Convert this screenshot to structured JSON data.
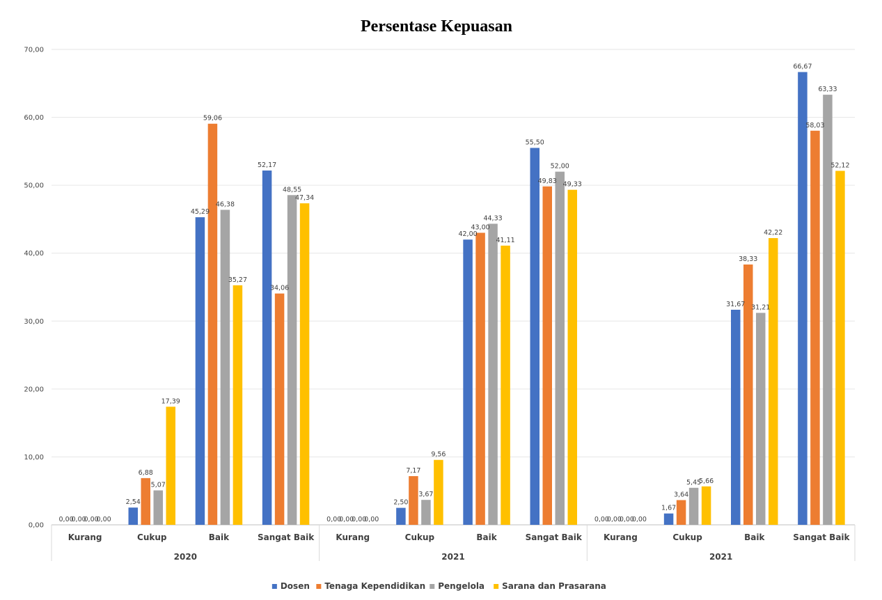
{
  "chart_data": {
    "type": "bar",
    "title": "Persentase Kepuasan",
    "xlabel": "",
    "ylabel": "",
    "ylim": [
      0,
      70
    ],
    "yticks": [
      "0,00",
      "10,00",
      "20,00",
      "30,00",
      "40,00",
      "50,00",
      "60,00",
      "70,00"
    ],
    "grid": true,
    "legend_position": "bottom",
    "groups": [
      {
        "label": "2020",
        "categories": [
          "Kurang",
          "Cukup",
          "Baik",
          "Sangat Baik"
        ]
      },
      {
        "label": "2021",
        "categories": [
          "Kurang",
          "Cukup",
          "Baik",
          "Sangat Baik"
        ]
      },
      {
        "label": "2021",
        "categories": [
          "Kurang",
          "Cukup",
          "Baik",
          "Sangat Baik"
        ]
      }
    ],
    "series": [
      {
        "name": "Dosen",
        "color": "#4472C4",
        "values": [
          0.0,
          2.54,
          45.29,
          52.17,
          0.0,
          2.5,
          42.0,
          55.5,
          0.0,
          1.67,
          31.67,
          66.67
        ],
        "labels": [
          "0,00",
          "2,54",
          "45,29",
          "52,17",
          "0,00",
          "2,50",
          "42,00",
          "55,50",
          "0,00",
          "1,67",
          "31,67",
          "66,67"
        ]
      },
      {
        "name": "Tenaga Kependidikan",
        "color": "#ED7D31",
        "values": [
          0.0,
          6.88,
          59.06,
          34.06,
          0.0,
          7.17,
          43.0,
          49.83,
          0.0,
          3.64,
          38.33,
          58.03
        ],
        "labels": [
          "0,00",
          "6,88",
          "59,06",
          "34,06",
          "0,00",
          "7,17",
          "43,00",
          "49,83",
          "0,00",
          "3,64",
          "38,33",
          "58,03"
        ]
      },
      {
        "name": "Pengelola",
        "color": "#A5A5A5",
        "values": [
          0.0,
          5.07,
          46.38,
          48.55,
          0.0,
          3.67,
          44.33,
          52.0,
          0.0,
          5.45,
          31.21,
          63.33
        ],
        "labels": [
          "0,00",
          "5,07",
          "46,38",
          "48,55",
          "0,00",
          "3,67",
          "44,33",
          "52,00",
          "0,00",
          "5,45",
          "31,21",
          "63,33"
        ]
      },
      {
        "name": "Sarana dan Prasarana",
        "color": "#FFC000",
        "values": [
          0.0,
          17.39,
          35.27,
          47.34,
          0.0,
          9.56,
          41.11,
          49.33,
          0.0,
          5.66,
          42.22,
          52.12
        ],
        "labels": [
          "0,00",
          "17,39",
          "35,27",
          "47,34",
          "0,00",
          "9,56",
          "41,11",
          "49,33",
          "0,00",
          "5,66",
          "42,22",
          "52,12"
        ]
      }
    ]
  }
}
